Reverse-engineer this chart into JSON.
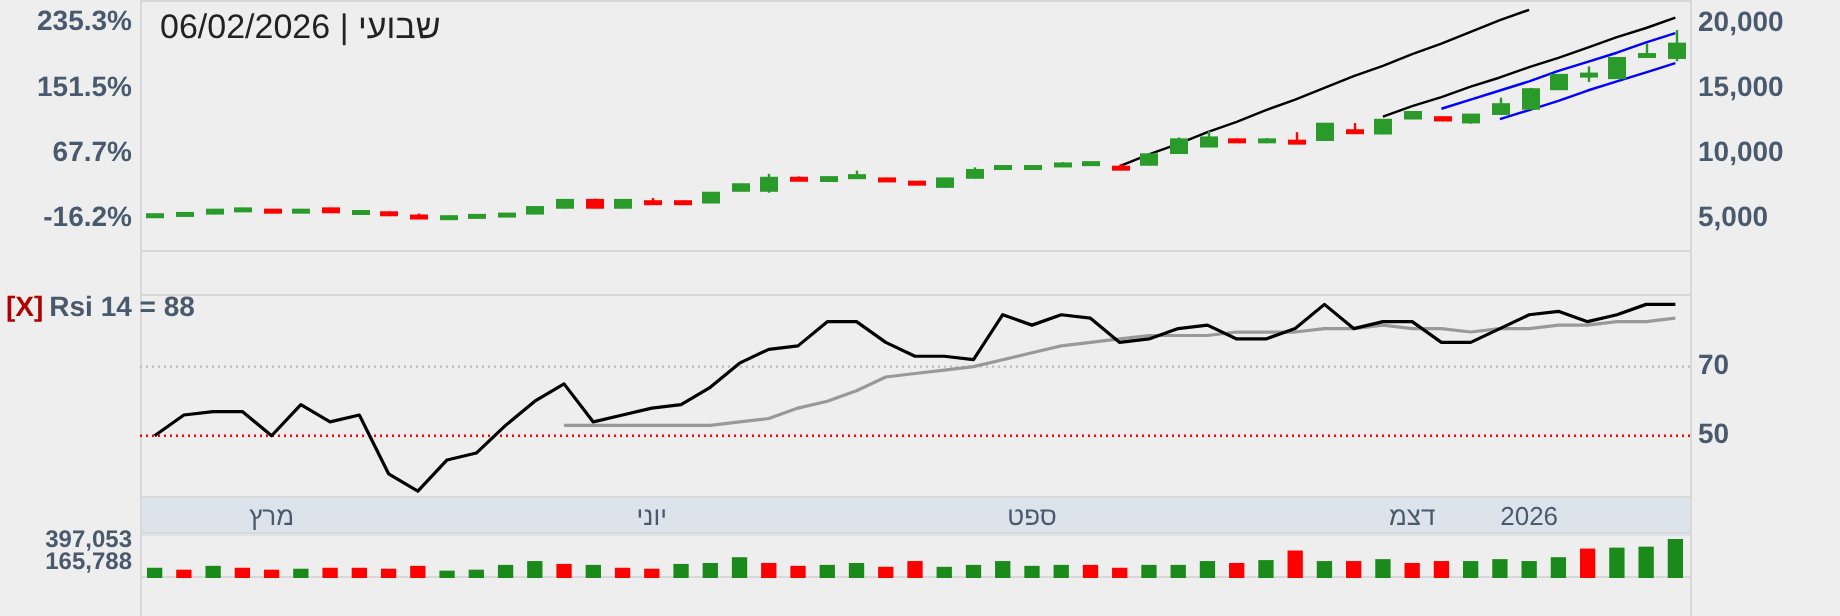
{
  "chart_data": [
    {
      "type": "candlestick",
      "title": "שבועי | 06/02/2026",
      "categories": [
        null,
        null,
        null,
        null,
        null,
        null,
        null,
        null,
        null,
        null,
        null,
        null,
        null,
        null,
        null,
        null,
        null,
        null,
        null,
        null,
        null,
        null,
        null,
        null,
        null,
        null,
        null,
        null,
        null,
        null,
        null,
        null,
        null,
        null,
        null,
        null,
        null,
        null,
        null,
        null,
        null,
        null,
        null,
        null,
        null,
        null,
        null,
        null,
        null,
        null,
        null,
        null,
        null
      ],
      "ohlc": [
        [
          5100,
          5350,
          5050,
          5300
        ],
        [
          5400,
          5450,
          5300,
          5350
        ],
        [
          5350,
          5700,
          5300,
          5650
        ],
        [
          5750,
          5800,
          5650,
          5700
        ],
        [
          5650,
          5700,
          5550,
          5600
        ],
        [
          5550,
          5700,
          5500,
          5650
        ],
        [
          5750,
          5800,
          5400,
          5450
        ],
        [
          5550,
          5600,
          5400,
          5500
        ],
        [
          5450,
          5500,
          5300,
          5350
        ],
        [
          5200,
          5350,
          5000,
          5050
        ],
        [
          5150,
          5200,
          5000,
          5100
        ],
        [
          5250,
          5300,
          5150,
          5200
        ],
        [
          5350,
          5400,
          5250,
          5300
        ],
        [
          5350,
          5900,
          5300,
          5850
        ],
        [
          5800,
          6450,
          5750,
          6400
        ],
        [
          6400,
          6500,
          5750,
          5800
        ],
        [
          5800,
          6450,
          5750,
          6400
        ],
        [
          6300,
          6550,
          6250,
          6250
        ],
        [
          6300,
          6350,
          6150,
          6200
        ],
        [
          6200,
          7000,
          6150,
          6950
        ],
        [
          7100,
          7650,
          7050,
          7600
        ],
        [
          7100,
          8400,
          6950,
          8100
        ],
        [
          8100,
          8200,
          7900,
          7950
        ],
        [
          7850,
          8200,
          7800,
          8150
        ],
        [
          8300,
          8650,
          8150,
          8200
        ],
        [
          8050,
          8100,
          7950,
          7950
        ],
        [
          7800,
          7850,
          7600,
          7650
        ],
        [
          7400,
          8100,
          7350,
          8050
        ],
        [
          8100,
          8900,
          8050,
          8700
        ],
        [
          9000,
          9050,
          8850,
          8900
        ],
        [
          9000,
          9050,
          8850,
          8950
        ],
        [
          9200,
          9300,
          9100,
          9200
        ],
        [
          9300,
          9350,
          9100,
          9250
        ],
        [
          8950,
          9150,
          8750,
          8950
        ],
        [
          9100,
          10000,
          9050,
          9900
        ],
        [
          10000,
          11200,
          9950,
          11050
        ],
        [
          10500,
          11700,
          10450,
          11200
        ],
        [
          11050,
          11100,
          10850,
          10900
        ],
        [
          11050,
          11150,
          10950,
          11050
        ],
        [
          10950,
          11600,
          10900,
          10950
        ],
        [
          11000,
          12300,
          10950,
          12250
        ],
        [
          11750,
          12300,
          11700,
          11750
        ],
        [
          11500,
          12600,
          11450,
          12550
        ],
        [
          12650,
          13200,
          12600,
          13150
        ],
        [
          12750,
          12800,
          12450,
          12500
        ],
        [
          12350,
          13000,
          12250,
          12950
        ],
        [
          13000,
          14250,
          12950,
          13750
        ],
        [
          13400,
          15000,
          13350,
          14900
        ],
        [
          14900,
          16050,
          14850,
          16000
        ],
        [
          16050,
          16650,
          15450,
          16100
        ],
        [
          15750,
          17350,
          15700,
          17300
        ],
        [
          17600,
          18400,
          17300,
          17450
        ],
        [
          17300,
          19450,
          17050,
          18400
        ]
      ],
      "colors": [
        "#2a9a2a",
        "#2a9a2a",
        "#2a9a2a",
        "#2a9a2a",
        "#ff0000",
        "#2a9a2a",
        "#ff0000",
        "#2a9a2a",
        "#ff0000",
        "#ff0000",
        "#2a9a2a",
        "#2a9a2a",
        "#2a9a2a",
        "#2a9a2a",
        "#2a9a2a",
        "#ff0000",
        "#2a9a2a",
        "#ff0000",
        "#ff0000",
        "#2a9a2a",
        "#2a9a2a",
        "#2a9a2a",
        "#ff0000",
        "#2a9a2a",
        "#2a9a2a",
        "#ff0000",
        "#ff0000",
        "#2a9a2a",
        "#2a9a2a",
        "#2a9a2a",
        "#2a9a2a",
        "#2a9a2a",
        "#2a9a2a",
        "#ff0000",
        "#2a9a2a",
        "#2a9a2a",
        "#2a9a2a",
        "#ff0000",
        "#2a9a2a",
        "#ff0000",
        "#2a9a2a",
        "#ff0000",
        "#2a9a2a",
        "#2a9a2a",
        "#ff0000",
        "#2a9a2a",
        "#2a9a2a",
        "#2a9a2a",
        "#2a9a2a",
        "#2a9a2a",
        "#2a9a2a",
        "#2a9a2a",
        "#2a9a2a"
      ],
      "series": [
        {
          "type": "line",
          "color": "#000000",
          "values": [
            null,
            null,
            null,
            null,
            null,
            null,
            null,
            null,
            null,
            null,
            null,
            null,
            null,
            null,
            null,
            null,
            null,
            null,
            null,
            null,
            null,
            null,
            null,
            null,
            null,
            null,
            null,
            null,
            null,
            null,
            null,
            null,
            null,
            9000,
            9900,
            10700,
            11600,
            12400,
            13300,
            14100,
            15000,
            15900,
            16700,
            17600,
            18400,
            19300,
            20200,
            21000,
            null,
            null,
            null,
            null,
            null
          ]
        },
        {
          "type": "line",
          "color": "#000000",
          "values": [
            null,
            null,
            null,
            null,
            null,
            null,
            null,
            null,
            null,
            null,
            null,
            null,
            null,
            null,
            null,
            null,
            null,
            null,
            null,
            null,
            null,
            null,
            null,
            null,
            null,
            null,
            null,
            null,
            null,
            null,
            null,
            null,
            null,
            null,
            null,
            null,
            null,
            null,
            null,
            null,
            null,
            null,
            12800,
            13600,
            14300,
            15100,
            15800,
            16600,
            17300,
            18100,
            18900,
            19600,
            20400
          ]
        },
        {
          "type": "line",
          "color": "#0000ff",
          "values": [
            null,
            null,
            null,
            null,
            null,
            null,
            null,
            null,
            null,
            null,
            null,
            null,
            null,
            null,
            null,
            null,
            null,
            null,
            null,
            null,
            null,
            null,
            null,
            null,
            null,
            null,
            null,
            null,
            null,
            null,
            null,
            null,
            null,
            null,
            null,
            null,
            null,
            null,
            null,
            null,
            null,
            null,
            null,
            null,
            13400,
            14100,
            14800,
            15500,
            16300,
            17000,
            17700,
            18500,
            19200
          ]
        },
        {
          "type": "line",
          "color": "#0000ff",
          "values": [
            null,
            null,
            null,
            null,
            null,
            null,
            null,
            null,
            null,
            null,
            null,
            null,
            null,
            null,
            null,
            null,
            null,
            null,
            null,
            null,
            null,
            null,
            null,
            null,
            null,
            null,
            null,
            null,
            null,
            null,
            null,
            null,
            null,
            null,
            null,
            null,
            null,
            null,
            null,
            null,
            null,
            null,
            null,
            null,
            null,
            null,
            12600,
            13300,
            14000,
            14800,
            15500,
            16200,
            16900
          ]
        }
      ],
      "ylim": [
        2400,
        21750
      ],
      "yticks": [
        {
          "value": 5000,
          "label": "5,000"
        },
        {
          "value": 10000,
          "label": "10,000"
        },
        {
          "value": 15000,
          "label": "15,000"
        },
        {
          "value": 20000,
          "label": "20,000"
        }
      ],
      "y2lim": [
        -59.8,
        264.5
      ],
      "y2ticks": [
        {
          "value": -16.2,
          "label": "-16.2%"
        },
        {
          "value": 67.7,
          "label": "67.7%"
        },
        {
          "value": 151.5,
          "label": "151.5%"
        },
        {
          "value": 235.3,
          "label": "235.3%"
        }
      ],
      "tick_labels": "y"
    },
    {
      "type": "line",
      "annotations": [
        "[X]",
        "Rsi 14 = 88"
      ],
      "categories": [
        null,
        null,
        null,
        null,
        "מרץ",
        null,
        null,
        null,
        null,
        null,
        null,
        null,
        null,
        null,
        null,
        null,
        null,
        "יוני",
        null,
        null,
        null,
        null,
        null,
        null,
        null,
        null,
        null,
        null,
        null,
        null,
        "ספט",
        null,
        null,
        null,
        null,
        null,
        null,
        null,
        null,
        null,
        null,
        null,
        null,
        "דצמ",
        null,
        null,
        null,
        "2026",
        null,
        null,
        null,
        null,
        null
      ],
      "series": [
        {
          "color": "#000000",
          "values": [
            50,
            56,
            57,
            57,
            50,
            59,
            54,
            56,
            39,
            34,
            43,
            45,
            53,
            60,
            65,
            54,
            56,
            58,
            59,
            64,
            71,
            75,
            76,
            83,
            83,
            77,
            73,
            73,
            72,
            85,
            82,
            85,
            84,
            77,
            78,
            81,
            82,
            78,
            78,
            81,
            88,
            81,
            83,
            83,
            77,
            77,
            81,
            85,
            86,
            83,
            85,
            88,
            88
          ]
        },
        {
          "color": "#999999",
          "values": [
            null,
            null,
            null,
            null,
            null,
            null,
            null,
            null,
            null,
            null,
            null,
            null,
            null,
            null,
            53,
            53,
            53,
            53,
            53,
            53,
            54,
            55,
            58,
            60,
            63,
            67,
            68,
            69,
            70,
            72,
            74,
            76,
            77,
            78,
            79,
            79,
            79,
            80,
            80,
            80,
            81,
            81,
            82,
            81,
            81,
            80,
            81,
            81,
            82,
            82,
            83,
            83,
            84
          ]
        }
      ],
      "ylim": [
        32,
        91
      ],
      "yticks": [
        50,
        70
      ],
      "ref_lines": [
        {
          "axis": "y",
          "value": 70,
          "color": "#bbbbbb",
          "line_style": "dotted"
        },
        {
          "axis": "y",
          "value": 50,
          "color": "#ff0000",
          "line_style": "dotted"
        }
      ]
    },
    {
      "type": "bar",
      "categories": [
        null,
        null,
        null,
        null,
        null,
        null,
        null,
        null,
        null,
        null,
        null,
        null,
        null,
        null,
        null,
        null,
        null,
        null,
        null,
        null,
        null,
        null,
        null,
        null,
        null,
        null,
        null,
        null,
        null,
        null,
        null,
        null,
        null,
        null,
        null,
        null,
        null,
        null,
        null,
        null,
        null,
        null,
        null,
        null,
        null,
        null,
        null,
        null,
        null,
        null,
        null,
        null,
        null
      ],
      "values": [
        100000,
        80000,
        120000,
        100000,
        80000,
        90000,
        100000,
        100000,
        90000,
        120000,
        70000,
        80000,
        130000,
        170000,
        140000,
        130000,
        100000,
        90000,
        140000,
        150000,
        210000,
        150000,
        120000,
        130000,
        150000,
        110000,
        170000,
        110000,
        130000,
        170000,
        120000,
        130000,
        130000,
        100000,
        130000,
        130000,
        170000,
        150000,
        180000,
        280000,
        170000,
        170000,
        190000,
        150000,
        170000,
        170000,
        190000,
        170000,
        210000,
        300000,
        310000,
        320000,
        400000
      ],
      "colors": [
        "#1a8a1a",
        "#ff0000",
        "#1a8a1a",
        "#ff0000",
        "#ff0000",
        "#1a8a1a",
        "#ff0000",
        "#ff0000",
        "#ff0000",
        "#ff0000",
        "#1a8a1a",
        "#1a8a1a",
        "#1a8a1a",
        "#1a8a1a",
        "#ff0000",
        "#1a8a1a",
        "#ff0000",
        "#ff0000",
        "#1a8a1a",
        "#1a8a1a",
        "#1a8a1a",
        "#ff0000",
        "#ff0000",
        "#1a8a1a",
        "#1a8a1a",
        "#ff0000",
        "#ff0000",
        "#1a8a1a",
        "#1a8a1a",
        "#1a8a1a",
        "#1a8a1a",
        "#1a8a1a",
        "#ff0000",
        "#ff0000",
        "#1a8a1a",
        "#1a8a1a",
        "#1a8a1a",
        "#ff0000",
        "#1a8a1a",
        "#ff0000",
        "#1a8a1a",
        "#ff0000",
        "#1a8a1a",
        "#ff0000",
        "#ff0000",
        "#1a8a1a",
        "#1a8a1a",
        "#1a8a1a",
        "#1a8a1a",
        "#ff0000",
        "#1a8a1a",
        "#1a8a1a",
        "#1a8a1a"
      ],
      "ylim": [
        0,
        480000
      ],
      "yticks": [
        {
          "value": 165788,
          "label": "165,788"
        },
        {
          "value": 397053,
          "label": "397,053"
        }
      ],
      "tick_labels": "y"
    }
  ]
}
